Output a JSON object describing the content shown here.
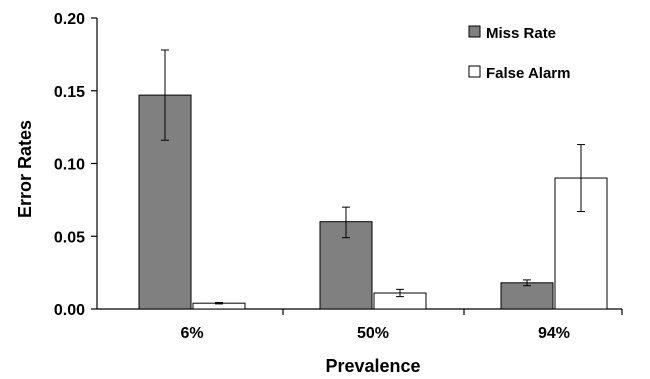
{
  "chart_data": {
    "type": "bar",
    "xlabel": "Prevalence",
    "ylabel": "Error Rates",
    "categories": [
      "6%",
      "50%",
      "94%"
    ],
    "ylim": [
      0,
      0.2
    ],
    "yticks": [
      "0.00",
      "0.05",
      "0.10",
      "0.15",
      "0.20"
    ],
    "series": [
      {
        "name": "Miss Rate",
        "color": "#808080",
        "values": [
          0.147,
          0.06,
          0.018
        ],
        "error_low": [
          0.116,
          0.049,
          0.016
        ],
        "error_high": [
          0.178,
          0.07,
          0.02
        ]
      },
      {
        "name": "False Alarm",
        "color": "#ffffff",
        "values": [
          0.004,
          0.011,
          0.09
        ],
        "error_low": [
          0.0035,
          0.0085,
          0.067
        ],
        "error_high": [
          0.0045,
          0.0135,
          0.113
        ]
      }
    ],
    "grid": false,
    "legend_position": "top-right"
  }
}
